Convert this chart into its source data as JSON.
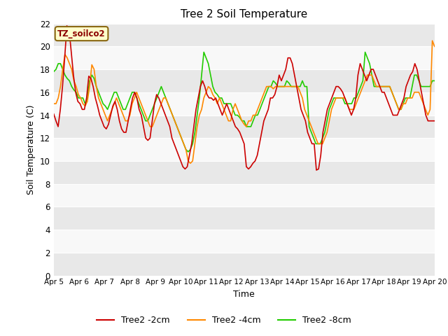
{
  "title": "Tree 2 Soil Temperature",
  "xlabel": "Time",
  "ylabel": "Soil Temperature (C)",
  "ylim": [
    0,
    22
  ],
  "yticks": [
    0,
    2,
    4,
    6,
    8,
    10,
    12,
    14,
    16,
    18,
    20,
    22
  ],
  "annotation_text": "TZ_soilco2",
  "line_colors": [
    "#cc0000",
    "#ff8800",
    "#22cc00"
  ],
  "line_labels": [
    "Tree2 -2cm",
    "Tree2 -4cm",
    "Tree2 -8cm"
  ],
  "line_width": 1.2,
  "x_ticks": [
    5,
    6,
    7,
    8,
    9,
    10,
    11,
    12,
    13,
    14,
    15,
    16,
    17,
    18,
    19,
    20
  ],
  "x_tick_labels": [
    "Apr 5",
    "Apr 6",
    "Apr 7",
    "Apr 8",
    "Apr 9",
    "Apr 10",
    "Apr 11",
    "Apr 12",
    "Apr 13",
    "Apr 14",
    "Apr 15",
    "Apr 16",
    "Apr 17",
    "Apr 18",
    "Apr 19",
    "Apr 20"
  ],
  "red_data": [
    14.1,
    13.5,
    13.0,
    14.5,
    16.5,
    19.0,
    21.8,
    21.5,
    19.5,
    17.5,
    16.0,
    15.2,
    15.0,
    14.5,
    14.5,
    15.5,
    17.4,
    17.2,
    16.5,
    15.5,
    14.8,
    14.0,
    13.5,
    13.0,
    12.8,
    13.2,
    14.0,
    14.8,
    15.2,
    14.5,
    13.5,
    12.8,
    12.5,
    12.5,
    13.5,
    14.5,
    15.5,
    16.0,
    15.5,
    14.5,
    14.0,
    13.0,
    12.0,
    11.8,
    12.0,
    13.5,
    15.0,
    15.8,
    15.5,
    15.0,
    14.5,
    14.0,
    13.5,
    13.0,
    12.0,
    11.5,
    11.0,
    10.5,
    10.0,
    9.5,
    9.3,
    9.5,
    10.5,
    11.5,
    13.0,
    14.5,
    15.5,
    16.5,
    17.0,
    16.5,
    15.8,
    15.5,
    15.5,
    15.3,
    15.5,
    15.0,
    14.5,
    14.0,
    14.5,
    15.0,
    14.5,
    14.0,
    13.5,
    13.0,
    12.8,
    12.5,
    12.0,
    11.5,
    9.5,
    9.3,
    9.5,
    9.8,
    10.0,
    10.5,
    11.5,
    12.5,
    13.5,
    14.0,
    14.5,
    15.5,
    15.5,
    15.8,
    16.5,
    17.5,
    17.0,
    17.5,
    18.0,
    19.0,
    19.0,
    18.5,
    17.5,
    16.5,
    15.5,
    14.5,
    14.0,
    13.5,
    12.5,
    12.0,
    11.5,
    11.5,
    9.2,
    9.3,
    10.5,
    12.5,
    13.5,
    14.5,
    15.0,
    15.5,
    16.0,
    16.5,
    16.5,
    16.3,
    16.0,
    15.5,
    15.0,
    14.5,
    14.0,
    14.5,
    15.5,
    17.5,
    18.5,
    18.0,
    17.5,
    17.0,
    17.5,
    18.0,
    18.0,
    17.5,
    17.0,
    16.5,
    16.0,
    16.0,
    15.5,
    15.0,
    14.5,
    14.0,
    14.0,
    14.0,
    14.5,
    15.0,
    15.5,
    16.5,
    17.0,
    17.5,
    17.8,
    18.5,
    18.0,
    17.0,
    16.0,
    15.0,
    14.0,
    13.5,
    13.5,
    13.5,
    13.5
  ],
  "orange_data": [
    15.0,
    15.0,
    15.5,
    16.5,
    18.0,
    19.3,
    19.0,
    18.5,
    18.0,
    17.0,
    16.5,
    15.8,
    15.5,
    15.0,
    14.8,
    15.2,
    16.5,
    18.4,
    18.0,
    16.5,
    15.5,
    15.0,
    14.5,
    14.0,
    13.5,
    14.0,
    14.5,
    15.0,
    15.5,
    15.0,
    14.5,
    14.0,
    13.5,
    13.5,
    14.0,
    15.0,
    15.5,
    16.0,
    15.5,
    15.0,
    14.5,
    14.0,
    13.5,
    13.0,
    13.0,
    13.5,
    14.0,
    14.5,
    15.0,
    15.5,
    15.5,
    15.0,
    14.5,
    14.0,
    13.5,
    13.0,
    12.5,
    12.0,
    11.5,
    11.0,
    10.0,
    9.8,
    10.0,
    11.5,
    13.0,
    14.0,
    14.5,
    15.5,
    16.0,
    16.5,
    16.3,
    15.8,
    15.5,
    15.0,
    15.5,
    15.0,
    14.5,
    14.0,
    13.5,
    13.5,
    14.5,
    15.0,
    14.5,
    14.0,
    13.5,
    13.2,
    13.0,
    13.5,
    13.5,
    14.0,
    14.0,
    14.5,
    15.0,
    15.5,
    16.0,
    16.5,
    16.5,
    16.5,
    16.3,
    16.5,
    16.5,
    16.5,
    16.5,
    16.5,
    16.5,
    16.5,
    16.5,
    16.5,
    16.5,
    16.5,
    16.0,
    15.5,
    14.5,
    14.0,
    13.5,
    13.0,
    12.5,
    12.0,
    11.5,
    11.5,
    11.5,
    12.0,
    12.5,
    13.5,
    14.5,
    15.0,
    15.5,
    15.5,
    15.5,
    15.5,
    15.5,
    15.0,
    14.5,
    14.5,
    14.5,
    15.0,
    15.5,
    16.0,
    16.5,
    17.0,
    17.5,
    17.5,
    17.5,
    17.0,
    16.5,
    16.5,
    16.5,
    16.5,
    16.5,
    16.5,
    16.5,
    16.0,
    15.5,
    15.0,
    14.5,
    14.5,
    15.0,
    15.0,
    15.5,
    15.5,
    15.5,
    16.0,
    16.0,
    16.0,
    15.5,
    15.0,
    14.5,
    14.0,
    14.5,
    20.5,
    20.0
  ],
  "green_data": [
    17.8,
    18.0,
    18.5,
    18.5,
    18.0,
    17.5,
    17.2,
    17.0,
    16.5,
    16.2,
    16.0,
    15.5,
    15.5,
    15.5,
    15.0,
    15.5,
    17.0,
    17.5,
    17.2,
    16.5,
    16.0,
    15.5,
    15.0,
    14.8,
    14.5,
    15.0,
    15.5,
    16.0,
    16.0,
    15.5,
    15.0,
    14.5,
    14.5,
    15.0,
    15.5,
    16.0,
    16.0,
    15.5,
    15.0,
    14.5,
    14.0,
    13.5,
    13.5,
    14.0,
    14.5,
    15.0,
    15.5,
    16.0,
    16.5,
    16.0,
    15.5,
    15.0,
    14.5,
    14.0,
    13.5,
    13.0,
    12.5,
    12.0,
    11.5,
    11.0,
    10.8,
    11.0,
    11.5,
    12.5,
    14.0,
    15.5,
    17.5,
    19.5,
    19.0,
    18.5,
    17.5,
    16.5,
    16.0,
    15.8,
    15.5,
    15.5,
    15.0,
    15.0,
    15.0,
    15.0,
    14.5,
    14.0,
    14.0,
    13.8,
    13.5,
    13.5,
    13.0,
    13.0,
    13.0,
    13.5,
    14.0,
    14.0,
    14.5,
    15.0,
    15.5,
    16.0,
    16.5,
    16.5,
    17.0,
    16.8,
    16.5,
    16.5,
    16.5,
    16.5,
    17.0,
    16.8,
    16.5,
    16.5,
    16.5,
    16.5,
    16.5,
    17.0,
    16.5,
    16.5,
    13.0,
    12.5,
    12.0,
    11.5,
    11.5,
    11.5,
    12.0,
    12.5,
    13.5,
    14.5,
    15.0,
    15.5,
    15.5,
    15.5,
    15.5,
    15.5,
    15.0,
    15.0,
    15.0,
    15.0,
    15.5,
    15.5,
    16.0,
    16.5,
    17.0,
    19.5,
    19.0,
    18.5,
    17.5,
    16.5,
    16.5,
    16.5,
    16.5,
    16.5,
    16.5,
    16.5,
    16.5,
    16.0,
    15.5,
    15.0,
    14.5,
    14.5,
    15.0,
    15.5,
    15.5,
    15.5,
    16.5,
    17.5,
    17.5,
    17.0,
    16.5,
    16.5,
    16.5,
    16.5,
    16.5,
    17.0,
    17.0
  ]
}
